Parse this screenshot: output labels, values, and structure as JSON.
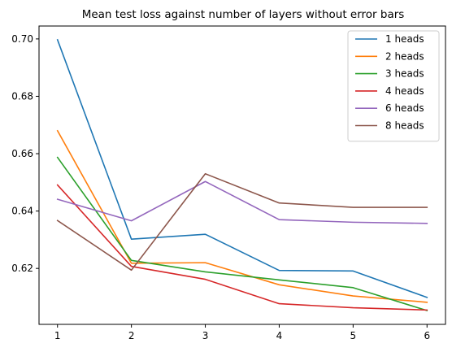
{
  "chart_data": {
    "type": "line",
    "title": "Mean test loss against number of layers without error bars",
    "xlabel": "",
    "ylabel": "",
    "x": [
      1,
      2,
      3,
      4,
      5,
      6
    ],
    "xlim": [
      0.75,
      6.25
    ],
    "ylim": [
      0.6005,
      0.7045
    ],
    "xticks": [
      "1",
      "2",
      "3",
      "4",
      "5",
      "6"
    ],
    "yticks": [
      "0.62",
      "0.64",
      "0.66",
      "0.68",
      "0.70"
    ],
    "ytick_values": [
      0.62,
      0.64,
      0.66,
      0.68,
      0.7
    ],
    "grid": false,
    "legend_position": "top-right",
    "series": [
      {
        "name": "1 heads",
        "color": "#1f77b4",
        "values": [
          0.6997,
          0.6302,
          0.6319,
          0.6193,
          0.6191,
          0.6099
        ]
      },
      {
        "name": "2 heads",
        "color": "#ff7f0e",
        "values": [
          0.668,
          0.6218,
          0.622,
          0.6143,
          0.6104,
          0.6082
        ]
      },
      {
        "name": "3 heads",
        "color": "#2ca02c",
        "values": [
          0.6587,
          0.6228,
          0.6188,
          0.616,
          0.6133,
          0.6053
        ]
      },
      {
        "name": "4 heads",
        "color": "#d62728",
        "values": [
          0.6491,
          0.6207,
          0.6162,
          0.6077,
          0.6063,
          0.6055
        ]
      },
      {
        "name": "6 heads",
        "color": "#9467bd",
        "values": [
          0.6441,
          0.6366,
          0.6503,
          0.637,
          0.6361,
          0.6357
        ]
      },
      {
        "name": "8 heads",
        "color": "#8c564b",
        "values": [
          0.6367,
          0.6194,
          0.653,
          0.6428,
          0.6413,
          0.6413
        ]
      }
    ]
  }
}
